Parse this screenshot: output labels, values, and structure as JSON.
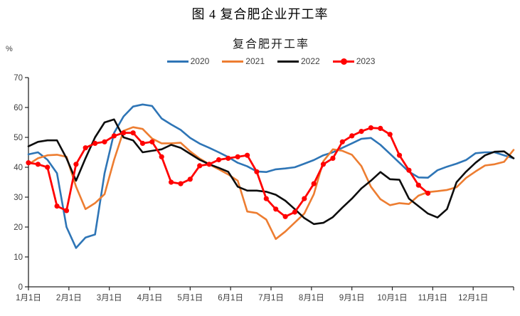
{
  "figure": {
    "title": "图 4 复合肥企业开工率"
  },
  "chart_data": {
    "type": "line",
    "title": "复合肥开工率",
    "y_unit_label": "%",
    "ylim": [
      0,
      70
    ],
    "y_ticks": [
      0,
      10,
      20,
      30,
      40,
      50,
      60,
      70
    ],
    "grid": false,
    "legend_position": "top",
    "x_tick_labels": [
      "1月1日",
      "2月1日",
      "3月1日",
      "4月1日",
      "5月1日",
      "6月1日",
      "7月1日",
      "8月1日",
      "9月1日",
      "10月1日",
      "11月1日",
      "12月1日"
    ],
    "x_sampling": "weekly, 52 points Jan 1 - Dec 31; 2023 series ends early November",
    "series": [
      {
        "name": "2020",
        "color": "#2E75B6",
        "marker": false,
        "values": [
          44.3,
          45,
          42.5,
          38,
          20,
          13,
          16.5,
          17.5,
          38,
          51.5,
          57,
          60.3,
          61,
          60.5,
          56.3,
          54.3,
          52.5,
          49.8,
          47.9,
          46.5,
          45,
          43.4,
          41.5,
          40.3,
          38.6,
          38.4,
          39.3,
          39.6,
          40,
          41.2,
          42.4,
          44,
          45,
          46.5,
          48,
          49.5,
          49.8,
          47.5,
          44.5,
          41.5,
          38.5,
          36.6,
          36.5,
          39,
          40.2,
          41.2,
          42.4,
          44.7,
          45,
          45,
          44,
          43
        ]
      },
      {
        "name": "2021",
        "color": "#ED7D31",
        "marker": false,
        "values": [
          41,
          43,
          44,
          44.2,
          43.5,
          33.5,
          26,
          28,
          31,
          42.5,
          52.2,
          53.4,
          52.8,
          49.6,
          48,
          48,
          48.2,
          45.3,
          42.9,
          41,
          39.3,
          37.6,
          35.5,
          25.2,
          24.7,
          22.5,
          16,
          18.5,
          21.5,
          24.5,
          31,
          42,
          46,
          45.5,
          44.2,
          40.4,
          33.5,
          29.3,
          27.3,
          28,
          27.7,
          30.5,
          31.7,
          32,
          32.4,
          33.3,
          36.4,
          38.6,
          40.6,
          41,
          41.8,
          45.8
        ]
      },
      {
        "name": "2022",
        "color": "#0d0d0d",
        "marker": false,
        "values": [
          47,
          48.5,
          49,
          49,
          43,
          35.5,
          43,
          50,
          55,
          56,
          50,
          49,
          45,
          45.5,
          46,
          47.5,
          46.5,
          44.5,
          42.5,
          41,
          39.8,
          38.5,
          33.5,
          32.2,
          32.2,
          31.8,
          30.8,
          28.8,
          26,
          23,
          21,
          21.4,
          23.3,
          26.5,
          29.5,
          32.9,
          35.5,
          38.4,
          36,
          35.8,
          29.5,
          27,
          24.5,
          23.2,
          26,
          35,
          38.5,
          41.5,
          44,
          45.2,
          45.3,
          43
        ]
      },
      {
        "name": "2023",
        "color": "#FF0000",
        "marker": true,
        "values": [
          41.5,
          41,
          40,
          27,
          25.5,
          41,
          46.5,
          48,
          48.5,
          50.5,
          51.5,
          51.5,
          48,
          48.5,
          43.5,
          35,
          34.5,
          36,
          40.5,
          41,
          42.5,
          43,
          43.5,
          44,
          38.5,
          29.5,
          26,
          23.5,
          25,
          29.5,
          34.5,
          41,
          43,
          48.5,
          50.5,
          52,
          53.2,
          53,
          51,
          44,
          39,
          34,
          31.3
        ]
      }
    ]
  }
}
